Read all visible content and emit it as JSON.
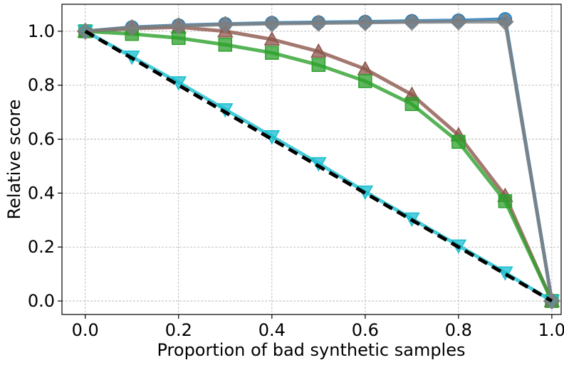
{
  "chart_data": {
    "type": "line",
    "title": "",
    "xlabel": "Proportion of bad synthetic samples",
    "ylabel": "Relative score",
    "xlim": [
      -0.05,
      1.02
    ],
    "ylim": [
      -0.05,
      1.1
    ],
    "xticks": [
      0.0,
      0.2,
      0.4,
      0.6,
      0.8,
      1.0
    ],
    "xtick_labels": [
      "0.0",
      "0.2",
      "0.4",
      "0.6",
      "0.8",
      "1.0"
    ],
    "yticks": [
      0.0,
      0.2,
      0.4,
      0.6,
      0.8,
      1.0
    ],
    "ytick_labels": [
      "0.0",
      "0.2",
      "0.4",
      "0.6",
      "0.8",
      "1.0"
    ],
    "grid": true,
    "x": [
      0.0,
      0.1,
      0.2,
      0.3,
      0.4,
      0.5,
      0.6,
      0.7,
      0.8,
      0.9,
      1.0
    ],
    "series": [
      {
        "name": "blue-circle",
        "color": "#1f77b4",
        "marker": "circle",
        "values": [
          1.0,
          1.015,
          1.022,
          1.027,
          1.031,
          1.033,
          1.035,
          1.038,
          1.04,
          1.045,
          0.0
        ]
      },
      {
        "name": "brown-triangle-up",
        "color": "#8c564b",
        "marker": "triangle-up",
        "values": [
          1.0,
          1.01,
          1.015,
          1.0,
          0.97,
          0.925,
          0.86,
          0.765,
          0.615,
          0.39,
          0.0
        ]
      },
      {
        "name": "green-square",
        "color": "#2ca02c",
        "marker": "square",
        "values": [
          1.0,
          0.99,
          0.975,
          0.95,
          0.92,
          0.875,
          0.815,
          0.73,
          0.59,
          0.37,
          0.0
        ]
      },
      {
        "name": "cyan-triangle-down",
        "color": "#17becf",
        "marker": "triangle-down",
        "values": [
          1.0,
          0.905,
          0.81,
          0.71,
          0.61,
          0.51,
          0.405,
          0.305,
          0.205,
          0.105,
          0.0
        ]
      },
      {
        "name": "gray-diamond",
        "color": "#7f7f7f",
        "marker": "diamond",
        "values": [
          1.0,
          1.013,
          1.02,
          1.025,
          1.028,
          1.03,
          1.032,
          1.034,
          1.035,
          1.035,
          0.0
        ]
      },
      {
        "name": "black-dashed-reference",
        "color": "#000000",
        "marker": "none",
        "dashed": true,
        "values": [
          1.0,
          0.9,
          0.8,
          0.7,
          0.6,
          0.5,
          0.4,
          0.3,
          0.2,
          0.1,
          0.0
        ]
      }
    ]
  }
}
